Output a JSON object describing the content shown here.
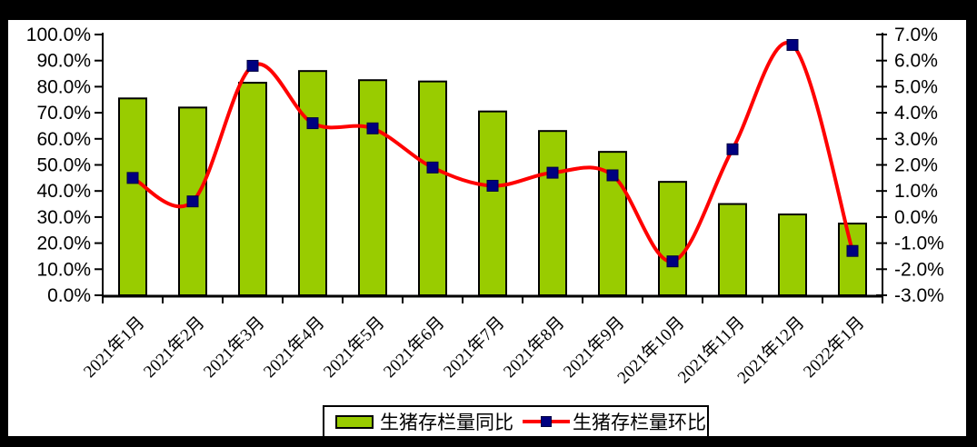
{
  "chart_data": {
    "type": "bar+line",
    "title": "",
    "grid": false,
    "categories": [
      "2021年1月",
      "2021年2月",
      "2021年3月",
      "2021年4月",
      "2021年5月",
      "2021年6月",
      "2021年7月",
      "2021年8月",
      "2021年9月",
      "2021年10月",
      "2021年11月",
      "2021年12月",
      "2022年1月"
    ],
    "series": [
      {
        "name": "生猪存栏量同比",
        "type": "bar",
        "axis": "left",
        "color": "#99CC00",
        "border_color": "#000000",
        "values": [
          75.5,
          72.0,
          81.5,
          86.0,
          82.5,
          82.0,
          70.5,
          63.0,
          55.0,
          43.5,
          35.0,
          31.0,
          27.5
        ]
      },
      {
        "name": "生猪存栏量环比",
        "type": "line",
        "axis": "right",
        "smooth": true,
        "color": "#FF0000",
        "marker": "square",
        "marker_color": "#000080",
        "values": [
          1.5,
          0.6,
          5.8,
          3.6,
          3.4,
          1.9,
          1.2,
          1.7,
          1.6,
          -1.7,
          2.6,
          6.6,
          -1.3
        ]
      }
    ],
    "left_axis": {
      "min": 0,
      "max": 100,
      "step": 10,
      "tick_labels": [
        "100.0%",
        "90.0%",
        "80.0%",
        "70.0%",
        "60.0%",
        "50.0%",
        "40.0%",
        "30.0%",
        "20.0%",
        "10.0%",
        "0.0%"
      ]
    },
    "right_axis": {
      "min": -3,
      "max": 7,
      "step": 1,
      "tick_labels": [
        "7.0%",
        "6.0%",
        "5.0%",
        "4.0%",
        "3.0%",
        "2.0%",
        "1.0%",
        "0.0%",
        "-1.0%",
        "-2.0%",
        "-3.0%"
      ]
    },
    "legend": {
      "position": "bottom",
      "items": [
        {
          "label": "生猪存栏量同比"
        },
        {
          "label": "生猪存栏量环比"
        }
      ]
    },
    "colors": {
      "frame": "#000000",
      "background": "#FFFFFF",
      "axis": "#000000"
    }
  }
}
